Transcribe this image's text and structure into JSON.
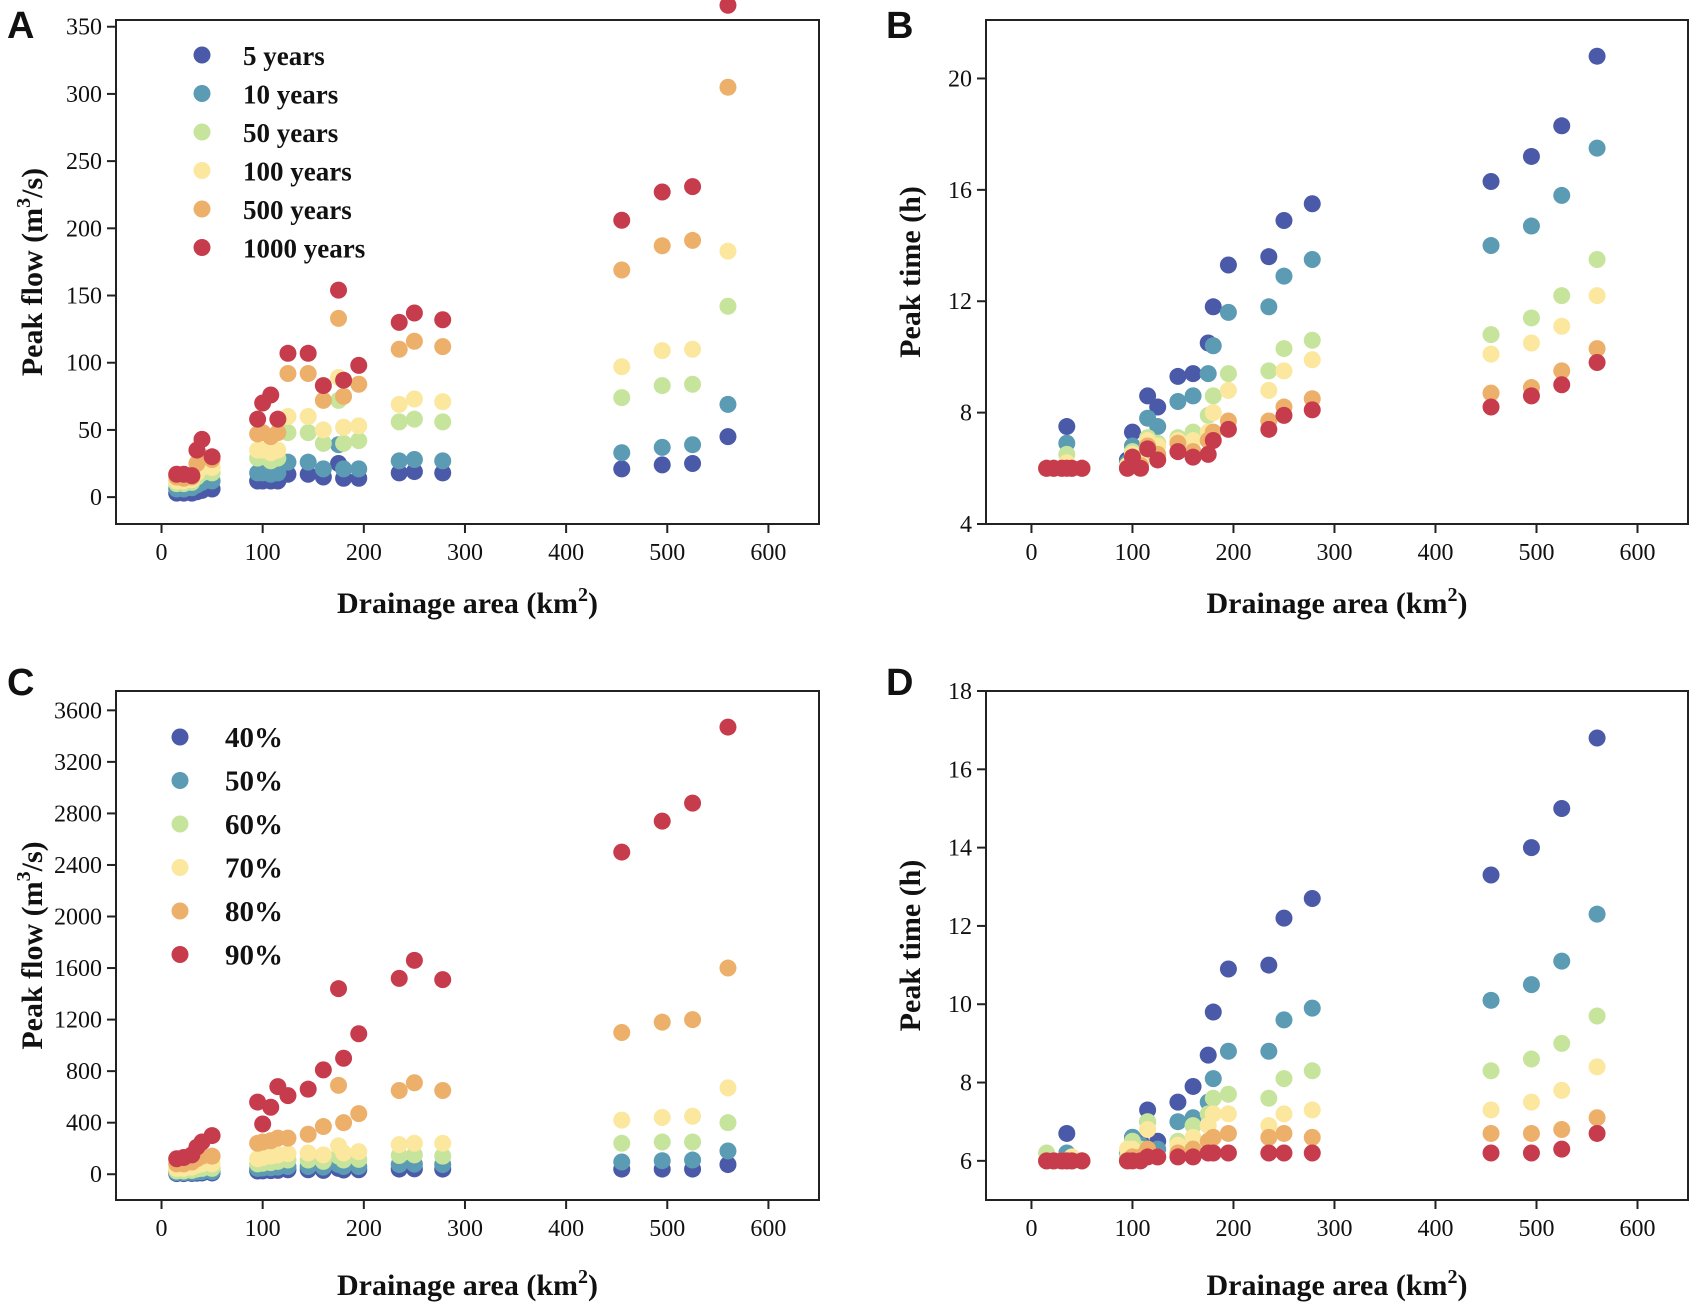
{
  "figure": {
    "colors": {
      "c1": "#4A5AA8",
      "c2": "#5B9BB3",
      "c3": "#C7E49C",
      "c4": "#FBE79E",
      "c5": "#ECB06A",
      "c6": "#C63C4C"
    }
  },
  "chart_data": [
    {
      "id": "A",
      "panel_label": "A",
      "type": "scatter",
      "xlabel": "Drainage area (km²)",
      "ylabel": "Peak flow (m³/s)",
      "xlim": [
        -45,
        650
      ],
      "ylim": [
        -20,
        355
      ],
      "xticks": [
        0,
        100,
        200,
        300,
        400,
        500,
        600
      ],
      "yticks": [
        0,
        50,
        100,
        150,
        200,
        250,
        300,
        350
      ],
      "legend_position": "top-left",
      "x": [
        15,
        22,
        30,
        35,
        40,
        50,
        95,
        100,
        108,
        115,
        125,
        145,
        160,
        175,
        180,
        195,
        235,
        250,
        278,
        455,
        495,
        525,
        560
      ],
      "series": [
        {
          "name": "5 years",
          "color_key": "c1",
          "values": [
            3,
            3,
            3,
            4,
            5,
            6,
            12,
            12,
            12,
            12,
            17,
            17,
            15,
            25,
            14,
            14,
            18,
            19,
            18,
            21,
            24,
            25,
            45
          ]
        },
        {
          "name": "10 years",
          "color_key": "c2",
          "values": [
            6,
            6,
            7,
            9,
            11,
            12,
            18,
            18,
            17,
            18,
            26,
            26,
            21,
            39,
            21,
            21,
            27,
            28,
            27,
            33,
            37,
            39,
            69
          ]
        },
        {
          "name": "50 years",
          "color_key": "c3",
          "values": [
            10,
            10,
            11,
            15,
            18,
            18,
            29,
            30,
            27,
            29,
            48,
            48,
            40,
            72,
            40,
            42,
            56,
            58,
            56,
            74,
            83,
            84,
            142
          ]
        },
        {
          "name": "100 years",
          "color_key": "c4",
          "values": [
            12,
            12,
            13,
            18,
            22,
            22,
            35,
            35,
            33,
            35,
            60,
            60,
            50,
            89,
            52,
            53,
            69,
            73,
            71,
            97,
            109,
            110,
            183
          ]
        },
        {
          "name": "500 years",
          "color_key": "c5",
          "values": [
            15,
            14,
            15,
            25,
            30,
            28,
            47,
            48,
            45,
            48,
            92,
            92,
            72,
            133,
            75,
            84,
            110,
            116,
            112,
            169,
            187,
            191,
            305
          ]
        },
        {
          "name": "1000 years",
          "color_key": "c6",
          "values": [
            17,
            17,
            16,
            35,
            43,
            30,
            58,
            70,
            76,
            58,
            107,
            107,
            83,
            154,
            87,
            98,
            130,
            137,
            132,
            206,
            227,
            231,
            366
          ]
        }
      ]
    },
    {
      "id": "B",
      "panel_label": "B",
      "type": "scatter",
      "xlabel": "Drainage area (km²)",
      "ylabel": "Peak time (h)",
      "xlim": [
        -45,
        650
      ],
      "ylim": [
        4,
        22.1
      ],
      "xticks": [
        0,
        100,
        200,
        300,
        400,
        500,
        600
      ],
      "yticks": [
        4,
        8,
        12,
        16,
        20
      ],
      "x": [
        15,
        22,
        30,
        35,
        40,
        50,
        95,
        100,
        108,
        115,
        125,
        145,
        160,
        175,
        180,
        195,
        235,
        250,
        278,
        455,
        495,
        525,
        560
      ],
      "series": [
        {
          "name": "5 years",
          "color_key": "c1",
          "values": [
            6,
            6,
            6,
            7.5,
            6,
            6,
            6.3,
            7.3,
            6.5,
            8.6,
            8.2,
            9.3,
            9.4,
            10.5,
            11.8,
            13.3,
            13.6,
            14.9,
            15.5,
            16.3,
            17.2,
            18.3,
            20.8
          ]
        },
        {
          "name": "10 years",
          "color_key": "c2",
          "values": [
            6,
            6,
            6,
            6.9,
            6,
            6,
            6.2,
            6.8,
            6.4,
            7.8,
            7.5,
            8.4,
            8.6,
            9.4,
            10.4,
            11.6,
            11.8,
            12.9,
            13.5,
            14.0,
            14.7,
            15.8,
            17.5
          ]
        },
        {
          "name": "50 years",
          "color_key": "c3",
          "values": [
            6,
            6,
            6,
            6.5,
            6,
            6,
            6.1,
            6.6,
            6.3,
            7.1,
            6.9,
            7.1,
            7.3,
            7.9,
            8.6,
            9.4,
            9.5,
            10.3,
            10.6,
            10.8,
            11.4,
            12.2,
            13.5
          ]
        },
        {
          "name": "100 years",
          "color_key": "c4",
          "values": [
            6,
            6,
            6,
            6.2,
            6,
            6,
            6.1,
            6.5,
            6.2,
            7.0,
            6.8,
            7.0,
            7.0,
            7.3,
            8.0,
            8.8,
            8.8,
            9.5,
            9.9,
            10.1,
            10.5,
            11.1,
            12.2
          ]
        },
        {
          "name": "500 years",
          "color_key": "c5",
          "values": [
            6,
            6,
            6,
            6,
            6,
            6,
            6.0,
            6.4,
            6.1,
            6.8,
            6.5,
            6.9,
            6.6,
            7.0,
            7.3,
            7.7,
            7.7,
            8.2,
            8.5,
            8.7,
            8.9,
            9.5,
            10.3
          ]
        },
        {
          "name": "1000 years",
          "color_key": "c6",
          "values": [
            6,
            6,
            6,
            6,
            6,
            6,
            6.0,
            6.4,
            6.0,
            6.7,
            6.3,
            6.6,
            6.4,
            6.5,
            7.0,
            7.4,
            7.4,
            7.9,
            8.1,
            8.2,
            8.6,
            9.0,
            9.8
          ]
        }
      ]
    },
    {
      "id": "C",
      "panel_label": "C",
      "type": "scatter",
      "xlabel": "Drainage area (km²)",
      "ylabel": "Peak flow (m³/s)",
      "xlim": [
        -45,
        650
      ],
      "ylim": [
        -200,
        3750
      ],
      "xticks": [
        0,
        100,
        200,
        300,
        400,
        500,
        600
      ],
      "yticks": [
        0,
        400,
        800,
        1200,
        1600,
        2000,
        2400,
        2800,
        3200,
        3600
      ],
      "legend_position": "top-left",
      "x": [
        15,
        22,
        30,
        35,
        40,
        50,
        95,
        100,
        108,
        115,
        125,
        145,
        160,
        175,
        180,
        195,
        235,
        250,
        278,
        455,
        495,
        525,
        560
      ],
      "series": [
        {
          "name": "40%",
          "color_key": "c1",
          "values": [
            5,
            5,
            6,
            8,
            10,
            10,
            25,
            26,
            28,
            30,
            35,
            35,
            30,
            45,
            33,
            35,
            40,
            42,
            40,
            40,
            40,
            40,
            75
          ]
        },
        {
          "name": "50%",
          "color_key": "c2",
          "values": [
            12,
            12,
            14,
            18,
            20,
            20,
            45,
            48,
            50,
            55,
            60,
            60,
            55,
            75,
            60,
            60,
            75,
            78,
            75,
            95,
            105,
            110,
            180
          ]
        },
        {
          "name": "60%",
          "color_key": "c3",
          "values": [
            25,
            25,
            30,
            40,
            45,
            45,
            80,
            85,
            90,
            100,
            110,
            110,
            100,
            140,
            110,
            115,
            145,
            150,
            140,
            240,
            250,
            250,
            400
          ]
        },
        {
          "name": "70%",
          "color_key": "c4",
          "values": [
            45,
            45,
            55,
            70,
            80,
            80,
            120,
            130,
            140,
            150,
            160,
            165,
            150,
            220,
            165,
            175,
            230,
            240,
            240,
            420,
            440,
            450,
            670
          ]
        },
        {
          "name": "80%",
          "color_key": "c5",
          "values": [
            80,
            80,
            95,
            120,
            140,
            140,
            240,
            250,
            260,
            280,
            280,
            310,
            370,
            690,
            400,
            470,
            650,
            710,
            650,
            1100,
            1180,
            1200,
            1600
          ]
        },
        {
          "name": "90%",
          "color_key": "c6",
          "values": [
            120,
            130,
            150,
            210,
            250,
            300,
            560,
            390,
            520,
            680,
            610,
            660,
            810,
            1440,
            900,
            1090,
            1520,
            1660,
            1510,
            2500,
            2740,
            2880,
            3470
          ]
        }
      ]
    },
    {
      "id": "D",
      "panel_label": "D",
      "type": "scatter",
      "xlabel": "Drainage area (km²)",
      "ylabel": "Peak time (h)",
      "xlim": [
        -45,
        650
      ],
      "ylim": [
        5,
        18
      ],
      "xticks": [
        0,
        100,
        200,
        300,
        400,
        500,
        600
      ],
      "yticks": [
        6,
        8,
        10,
        12,
        14,
        16,
        18
      ],
      "x": [
        15,
        22,
        30,
        35,
        40,
        50,
        95,
        100,
        108,
        115,
        125,
        145,
        160,
        175,
        180,
        195,
        235,
        250,
        278,
        455,
        495,
        525,
        560
      ],
      "series": [
        {
          "name": "40%",
          "color_key": "c1",
          "values": [
            6,
            6,
            6,
            6.7,
            6,
            6,
            6.2,
            6.6,
            6.5,
            7.3,
            6.5,
            7.5,
            7.9,
            8.7,
            9.8,
            10.9,
            11.0,
            12.2,
            12.7,
            13.3,
            14.0,
            15.0,
            16.8
          ]
        },
        {
          "name": "50%",
          "color_key": "c2",
          "values": [
            6,
            6,
            6,
            6.2,
            6,
            6,
            6.2,
            6.6,
            6.4,
            7.0,
            6.3,
            7.0,
            7.1,
            7.5,
            8.1,
            8.8,
            8.8,
            9.6,
            9.9,
            10.1,
            10.5,
            11.1,
            12.3
          ]
        },
        {
          "name": "60%",
          "color_key": "c3",
          "values": [
            6.2,
            6,
            6,
            6,
            6,
            6,
            6.1,
            6.5,
            6.3,
            7.0,
            6.1,
            6.5,
            6.9,
            7.2,
            7.6,
            7.7,
            7.6,
            8.1,
            8.3,
            8.3,
            8.6,
            9.0,
            9.7
          ]
        },
        {
          "name": "70%",
          "color_key": "c4",
          "values": [
            6,
            6,
            6,
            6,
            6.1,
            6,
            6.3,
            6.3,
            6.2,
            6.8,
            6.1,
            6.4,
            6.6,
            6.9,
            7.2,
            7.2,
            6.9,
            7.2,
            7.3,
            7.3,
            7.5,
            7.8,
            8.4
          ]
        },
        {
          "name": "80%",
          "color_key": "c5",
          "values": [
            6,
            6,
            6,
            6,
            6,
            6,
            6.0,
            6.1,
            6.1,
            6.3,
            6.1,
            6.2,
            6.3,
            6.5,
            6.6,
            6.7,
            6.6,
            6.7,
            6.6,
            6.7,
            6.7,
            6.8,
            7.1
          ]
        },
        {
          "name": "90%",
          "color_key": "c6",
          "values": [
            6,
            6,
            6,
            6,
            6,
            6,
            6.0,
            6.0,
            6.0,
            6.1,
            6.1,
            6.1,
            6.1,
            6.2,
            6.2,
            6.2,
            6.2,
            6.2,
            6.2,
            6.2,
            6.2,
            6.3,
            6.7
          ]
        }
      ]
    }
  ]
}
